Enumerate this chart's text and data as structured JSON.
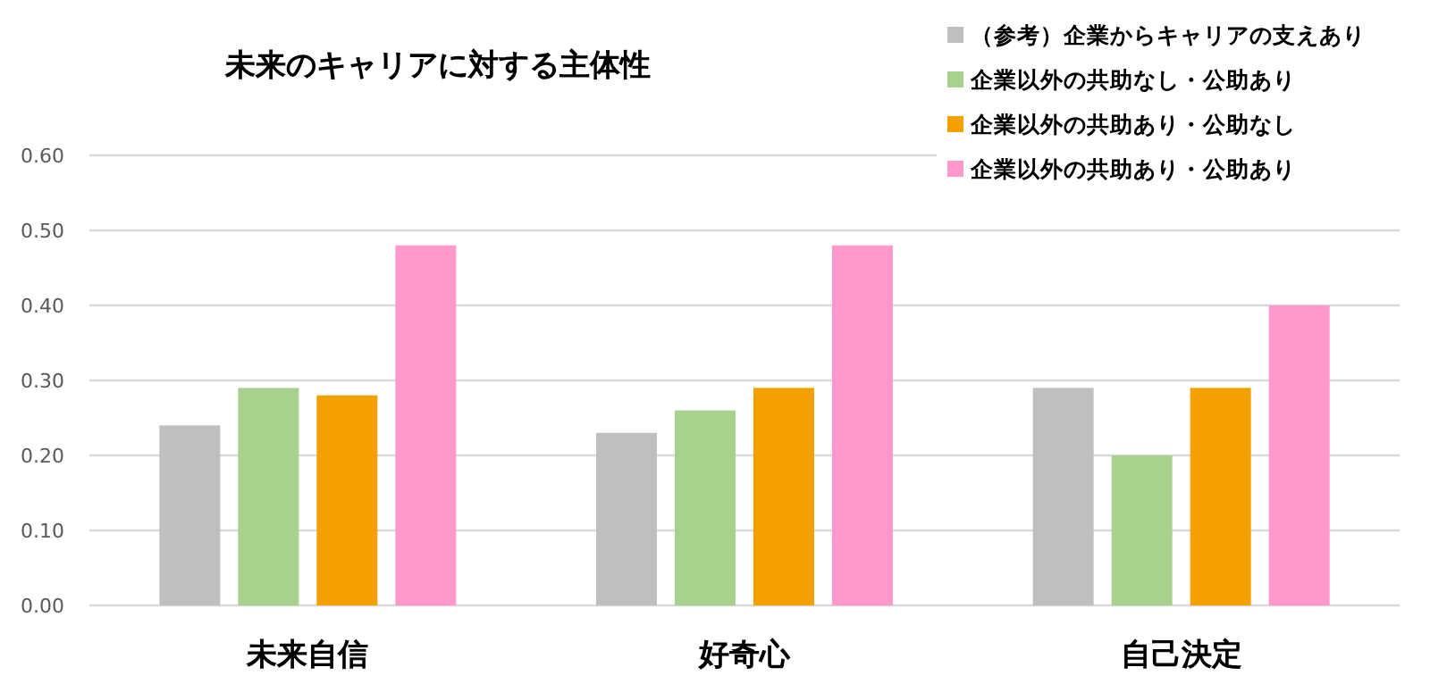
{
  "chart_data": {
    "type": "bar",
    "title": "未来のキャリアに対する主体性",
    "categories": [
      "未来自信",
      "好奇心",
      "自己決定"
    ],
    "series": [
      {
        "name": "（参考）企業からキャリアの支えあり",
        "color": "#bfbfbf",
        "values": [
          0.24,
          0.23,
          0.29
        ]
      },
      {
        "name": "企業以外の共助なし・公助あり",
        "color": "#a9d18e",
        "values": [
          0.29,
          0.26,
          0.2
        ]
      },
      {
        "name": "企業以外の共助あり・公助なし",
        "color": "#f4a000",
        "values": [
          0.28,
          0.29,
          0.29
        ]
      },
      {
        "name": "企業以外の共助あり・公助あり",
        "color": "#ff99cc",
        "values": [
          0.48,
          0.48,
          0.4
        ]
      }
    ],
    "ylim": [
      0,
      0.6
    ],
    "yticks": [
      {
        "value": 0,
        "label": "0.00"
      },
      {
        "value": 0.1,
        "label": "0.10"
      },
      {
        "value": 0.2,
        "label": "0.20"
      },
      {
        "value": 0.3,
        "label": "0.30"
      },
      {
        "value": 0.4,
        "label": "0.40"
      },
      {
        "value": 0.5,
        "label": "0.50"
      },
      {
        "value": 0.6,
        "label": "0.60"
      }
    ],
    "grid": "y",
    "legend": "top right"
  }
}
